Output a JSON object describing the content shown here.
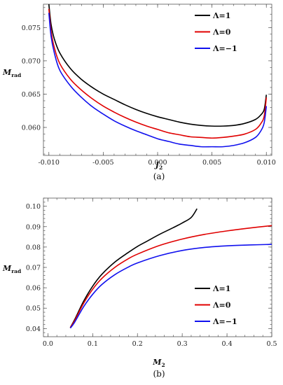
{
  "chart_data": [
    {
      "panel": "(a)",
      "type": "line",
      "xlabel": {
        "main": "J",
        "sub": "2"
      },
      "ylabel": {
        "main": "M",
        "sub": "rad"
      },
      "xlim": [
        -0.0105,
        0.0105
      ],
      "ylim": [
        0.0558,
        0.0785
      ],
      "xticks": [
        "-0.010",
        "-0.005",
        "0.000",
        "0.005",
        "0.010"
      ],
      "yticks": [
        "0.060",
        "0.065",
        "0.070",
        "0.075"
      ],
      "xtick_values": [
        -0.01,
        -0.005,
        0.0,
        0.005,
        0.01
      ],
      "ytick_values": [
        0.06,
        0.065,
        0.07,
        0.075
      ],
      "legend_position": "top-right",
      "series": [
        {
          "name": "Λ=1",
          "color": "#000000",
          "x": [
            -0.01,
            -0.0098,
            -0.0095,
            -0.009,
            -0.008,
            -0.007,
            -0.006,
            -0.005,
            -0.004,
            -0.003,
            -0.002,
            -0.001,
            0.0,
            0.001,
            0.002,
            0.003,
            0.004,
            0.005,
            0.006,
            0.007,
            0.008,
            0.009,
            0.0095,
            0.0098,
            0.01
          ],
          "y": [
            0.0785,
            0.0755,
            0.0733,
            0.0712,
            0.0688,
            0.0672,
            0.066,
            0.065,
            0.0642,
            0.0634,
            0.0627,
            0.0621,
            0.0616,
            0.0612,
            0.0608,
            0.0605,
            0.0603,
            0.0602,
            0.0602,
            0.0603,
            0.0606,
            0.0612,
            0.0619,
            0.0627,
            0.0649
          ]
        },
        {
          "name": "Λ=0",
          "color": "#e00000",
          "x": [
            -0.01,
            -0.0098,
            -0.0095,
            -0.009,
            -0.008,
            -0.007,
            -0.006,
            -0.005,
            -0.004,
            -0.003,
            -0.002,
            -0.001,
            0.0,
            0.001,
            0.002,
            0.003,
            0.004,
            0.005,
            0.006,
            0.007,
            0.008,
            0.009,
            0.0095,
            0.0098,
            0.01
          ],
          "y": [
            0.0778,
            0.0745,
            0.072,
            0.0696,
            0.0672,
            0.0656,
            0.0643,
            0.0632,
            0.0623,
            0.0615,
            0.0608,
            0.0602,
            0.0597,
            0.0592,
            0.0589,
            0.0586,
            0.0585,
            0.0584,
            0.0585,
            0.0587,
            0.059,
            0.0597,
            0.0606,
            0.0617,
            0.0645
          ]
        },
        {
          "name": "Λ=−1",
          "color": "#1010ee",
          "x": [
            -0.01,
            -0.0098,
            -0.0095,
            -0.009,
            -0.008,
            -0.007,
            -0.006,
            -0.005,
            -0.004,
            -0.003,
            -0.002,
            -0.001,
            0.0,
            0.001,
            0.002,
            0.003,
            0.004,
            0.005,
            0.006,
            0.007,
            0.008,
            0.009,
            0.0095,
            0.0098,
            0.01
          ],
          "y": [
            0.0772,
            0.0737,
            0.0712,
            0.0686,
            0.0662,
            0.0645,
            0.0631,
            0.062,
            0.061,
            0.0602,
            0.0595,
            0.0589,
            0.0583,
            0.0579,
            0.0575,
            0.0573,
            0.0571,
            0.0571,
            0.0571,
            0.0573,
            0.0577,
            0.0585,
            0.0595,
            0.0607,
            0.0632
          ]
        }
      ]
    },
    {
      "panel": "(b)",
      "type": "line",
      "xlabel": {
        "main": "M",
        "sub": "2"
      },
      "ylabel": {
        "main": "M",
        "sub": "rad"
      },
      "xlim": [
        -0.01,
        0.5
      ],
      "ylim": [
        0.036,
        0.104
      ],
      "xticks": [
        "0.0",
        "0.1",
        "0.2",
        "0.3",
        "0.4",
        "0.5"
      ],
      "yticks": [
        "0.04",
        "0.05",
        "0.06",
        "0.07",
        "0.08",
        "0.09",
        "0.10"
      ],
      "xtick_values": [
        0.0,
        0.1,
        0.2,
        0.3,
        0.4,
        0.5
      ],
      "ytick_values": [
        0.04,
        0.05,
        0.06,
        0.07,
        0.08,
        0.09,
        0.1
      ],
      "legend_position": "bottom-right",
      "series": [
        {
          "name": "Λ=1",
          "color": "#000000",
          "x": [
            0.05,
            0.06,
            0.08,
            0.1,
            0.12,
            0.15,
            0.18,
            0.2,
            0.22,
            0.25,
            0.28,
            0.3,
            0.32,
            0.333
          ],
          "y": [
            0.0405,
            0.0445,
            0.0535,
            0.0608,
            0.0665,
            0.0727,
            0.0774,
            0.0803,
            0.0827,
            0.0863,
            0.0895,
            0.0918,
            0.0945,
            0.0988
          ]
        },
        {
          "name": "Λ=0",
          "color": "#e00000",
          "x": [
            0.05,
            0.06,
            0.08,
            0.1,
            0.12,
            0.15,
            0.18,
            0.2,
            0.25,
            0.3,
            0.35,
            0.4,
            0.45,
            0.5
          ],
          "y": [
            0.0405,
            0.044,
            0.0525,
            0.0593,
            0.0645,
            0.0701,
            0.0743,
            0.0765,
            0.0808,
            0.0839,
            0.0862,
            0.0879,
            0.0893,
            0.0905
          ]
        },
        {
          "name": "Λ=−1",
          "color": "#1010ee",
          "x": [
            0.05,
            0.06,
            0.08,
            0.1,
            0.12,
            0.15,
            0.18,
            0.2,
            0.25,
            0.3,
            0.35,
            0.4,
            0.45,
            0.5
          ],
          "y": [
            0.0402,
            0.0432,
            0.0508,
            0.0568,
            0.0615,
            0.0665,
            0.0702,
            0.0722,
            0.0758,
            0.0783,
            0.0798,
            0.0806,
            0.081,
            0.0813
          ]
        }
      ]
    }
  ]
}
